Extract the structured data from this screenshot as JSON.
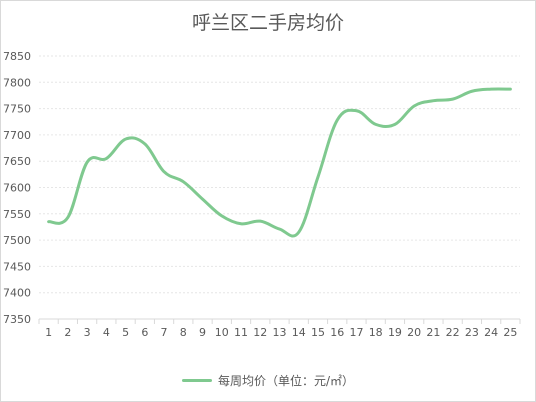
{
  "chart_data": {
    "type": "line",
    "title": "呼兰区二手房均价",
    "xlabel": "",
    "ylabel": "",
    "categories": [
      "1",
      "2",
      "3",
      "4",
      "5",
      "6",
      "7",
      "8",
      "9",
      "10",
      "11",
      "12",
      "13",
      "14",
      "15",
      "16",
      "17",
      "18",
      "19",
      "20",
      "21",
      "22",
      "23",
      "24",
      "25"
    ],
    "series": [
      {
        "name": "每周均价（单位：元/㎡）",
        "values": [
          7535,
          7543,
          7648,
          7655,
          7692,
          7683,
          7630,
          7611,
          7578,
          7546,
          7531,
          7536,
          7521,
          7515,
          7620,
          7728,
          7746,
          7720,
          7720,
          7755,
          7765,
          7768,
          7783,
          7787,
          7787
        ],
        "color": "#7fc98f"
      }
    ],
    "yticks": [
      "7350",
      "7400",
      "7450",
      "7500",
      "7550",
      "7600",
      "7650",
      "7700",
      "7750",
      "7800",
      "7850"
    ],
    "ylim": [
      7350,
      7850
    ],
    "grid": true,
    "legend": "bottom"
  }
}
